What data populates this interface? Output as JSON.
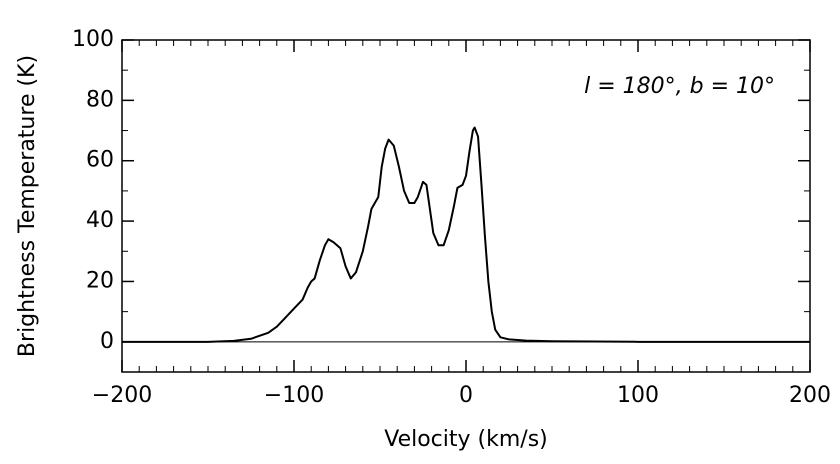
{
  "chart_data": {
    "type": "line",
    "xlabel": "Velocity (km/s)",
    "ylabel": "Brightness Temperature (K)",
    "annotation": "l = 180°, b = 10°",
    "xlim": [
      -200,
      200
    ],
    "ylim": [
      -10,
      100
    ],
    "xticks": [
      {
        "value": -200,
        "label": "−200"
      },
      {
        "value": -100,
        "label": "−100"
      },
      0,
      100,
      200
    ],
    "yticks": [
      0,
      20,
      40,
      60,
      80,
      100
    ],
    "zero_line": true,
    "series": [
      {
        "color": "#000000",
        "x": [
          -200,
          -150,
          -135,
          -125,
          -115,
          -110,
          -105,
          -100,
          -95,
          -92,
          -90,
          -88,
          -85,
          -82,
          -80,
          -77,
          -73,
          -70,
          -67,
          -64,
          -60,
          -57,
          -55,
          -53,
          -51,
          -49,
          -47,
          -45,
          -42,
          -39,
          -36,
          -33,
          -30,
          -28,
          -25,
          -23,
          -21,
          -19,
          -16,
          -13,
          -10,
          -7,
          -5,
          -2,
          0,
          2,
          4,
          5,
          7,
          9,
          11,
          13,
          15,
          17,
          20,
          25,
          35,
          50,
          100,
          200
        ],
        "values": [
          0,
          0,
          0.3,
          1,
          3,
          5,
          8,
          11,
          14,
          18,
          20,
          21,
          27,
          32,
          34,
          33,
          31,
          25,
          21,
          23,
          30,
          38,
          44,
          46,
          48,
          58,
          64,
          67,
          65,
          58,
          50,
          46,
          46,
          48,
          53,
          52,
          44,
          36,
          32,
          32,
          37,
          45,
          51,
          52,
          55,
          63,
          70,
          71,
          68,
          52,
          35,
          20,
          10,
          4,
          1.5,
          0.8,
          0.4,
          0.2,
          0,
          0
        ]
      }
    ]
  }
}
